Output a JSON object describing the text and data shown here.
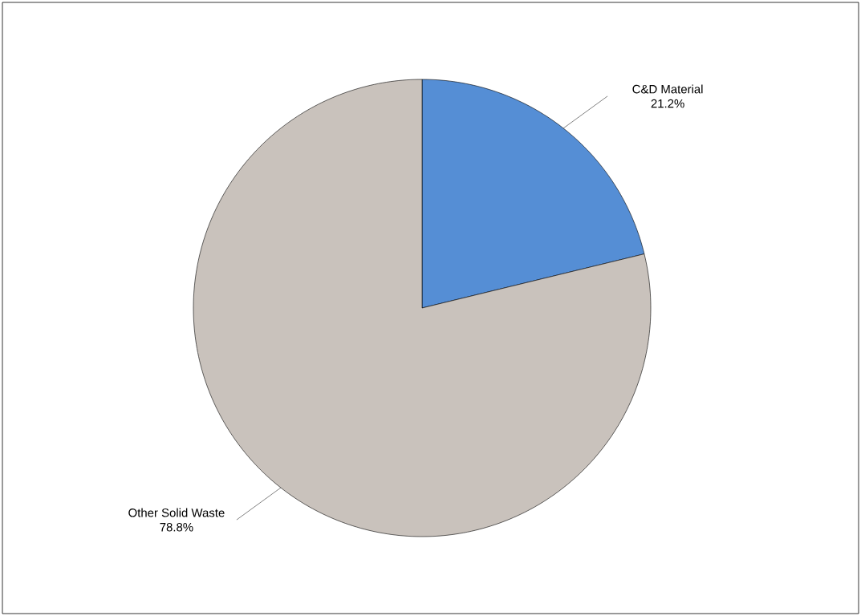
{
  "chart_data": {
    "type": "pie",
    "categories": [
      "C&D Material",
      "Other Solid Waste"
    ],
    "values": [
      21.2,
      78.8
    ],
    "colors": [
      "#558ed5",
      "#c9c2bc"
    ],
    "value_labels": [
      "21.2%",
      "78.8%"
    ]
  }
}
